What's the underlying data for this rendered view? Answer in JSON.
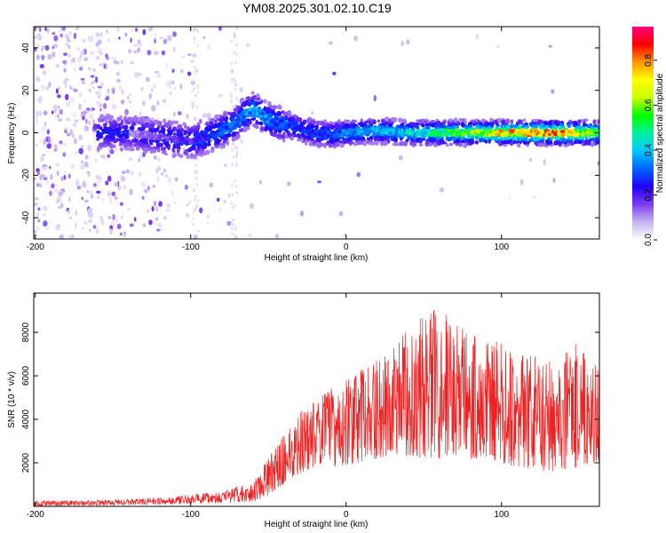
{
  "title": "YM08.2025.301.02.10.C19",
  "colors": {
    "snr_line": "#ee2222",
    "frame": "#000000",
    "colormap": [
      "#ffffff",
      "#c8b4f0",
      "#7c3cf0",
      "#2000ff",
      "#0064ff",
      "#00c8ff",
      "#00f0a0",
      "#00ff00",
      "#c8ff00",
      "#ffff00",
      "#ff9600",
      "#ff0000",
      "#ff0080"
    ]
  },
  "chart_data": [
    {
      "type": "heatmap",
      "name": "spectrogram",
      "title": "YM08.2025.301.02.10.C19",
      "xlabel": "Height of straight line (km)",
      "ylabel": "Frequency (Hz)",
      "xlim": [
        -201,
        163
      ],
      "ylim": [
        -50,
        50
      ],
      "xticks": [
        -200,
        -100,
        0,
        100
      ],
      "yticks": [
        -40,
        -20,
        0,
        20,
        40
      ],
      "colorbar": {
        "label": "Normalized spectral amplitude",
        "range": [
          0,
          0.95
        ],
        "ticks": [
          "0.0",
          "0.2",
          "0.4",
          "0.6",
          "0.8"
        ],
        "tick_values": [
          0.0,
          0.2,
          0.4,
          0.6,
          0.8
        ]
      },
      "ridge": {
        "x": [
          -200,
          -160,
          -140,
          -120,
          -100,
          -90,
          -80,
          -70,
          -65,
          -60,
          -55,
          -50,
          -45,
          -40,
          -30,
          -20,
          -10,
          0,
          20,
          40,
          60,
          80,
          100,
          120,
          140,
          163
        ],
        "y": [
          0,
          0,
          0,
          -2,
          -4,
          -2,
          1,
          5,
          9,
          11,
          9,
          6,
          5,
          4,
          2,
          0,
          -1,
          0,
          1,
          0,
          0,
          0,
          0,
          0,
          0,
          0
        ],
        "amplitude": [
          0.05,
          0.1,
          0.12,
          0.18,
          0.22,
          0.28,
          0.32,
          0.35,
          0.38,
          0.4,
          0.4,
          0.36,
          0.34,
          0.32,
          0.3,
          0.3,
          0.32,
          0.36,
          0.42,
          0.45,
          0.55,
          0.65,
          0.8,
          0.85,
          0.85,
          0.6
        ]
      }
    },
    {
      "type": "line",
      "name": "snr",
      "xlabel": "Height of straight line (km)",
      "ylabel": "SNR (10 * v/v)",
      "xlim": [
        -201,
        163
      ],
      "ylim": [
        0,
        9800
      ],
      "xticks": [
        -200,
        -100,
        0,
        100
      ],
      "yticks": [
        2000,
        4000,
        6000,
        8000
      ],
      "envelope": {
        "x": [
          -201,
          -150,
          -110,
          -80,
          -60,
          -50,
          -40,
          -30,
          -20,
          -10,
          0,
          10,
          20,
          30,
          40,
          50,
          60,
          70,
          80,
          90,
          100,
          110,
          120,
          130,
          140,
          150,
          163
        ],
        "low": [
          0,
          50,
          100,
          150,
          200,
          500,
          1000,
          1500,
          1800,
          1800,
          1900,
          2000,
          2200,
          2400,
          2300,
          2200,
          2200,
          2300,
          2200,
          2100,
          2000,
          1800,
          1600,
          1600,
          1700,
          1800,
          2000
        ],
        "high": [
          250,
          300,
          450,
          700,
          1100,
          2200,
          3300,
          4300,
          5000,
          5400,
          5800,
          6300,
          6700,
          7200,
          8200,
          8800,
          9300,
          8500,
          8000,
          7700,
          7500,
          7100,
          6900,
          6800,
          7000,
          7600,
          6200
        ]
      }
    }
  ]
}
